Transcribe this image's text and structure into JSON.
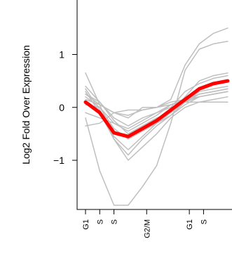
{
  "chart_data": {
    "type": "line",
    "title": "",
    "xlabel": "",
    "ylabel": "Log2 Fold Over Expression",
    "ylim": [
      -1.85,
      1.95
    ],
    "xlim": [
      0,
      10.3
    ],
    "yticks": [
      1,
      0,
      -1
    ],
    "ytick_labels": [
      "1",
      "0",
      "−1"
    ],
    "xticks": [
      {
        "x": 0,
        "label": "G1"
      },
      {
        "x": 1,
        "label": "S"
      },
      {
        "x": 2,
        "label": "S"
      },
      {
        "x": 4.3,
        "label": "G2/M"
      },
      {
        "x": 7.3,
        "label": "G1"
      },
      {
        "x": 8.3,
        "label": "S"
      }
    ],
    "highlight_color": "#ff0000",
    "background_color": "#bfbfbf",
    "x": [
      0,
      1,
      2,
      3,
      4,
      5,
      6,
      7,
      8,
      9,
      10
    ],
    "series": [
      {
        "values": [
          0.1,
          -0.1,
          -0.48,
          -0.55,
          -0.4,
          -0.25,
          -0.05,
          0.15,
          0.35,
          0.45,
          0.5
        ],
        "highlight": true
      },
      {
        "values": [
          0.25,
          0.1,
          -0.25,
          -0.5,
          -0.35,
          -0.2,
          -0.1,
          0.2,
          0.5,
          0.6,
          0.65
        ]
      },
      {
        "values": [
          0.4,
          0.1,
          -0.2,
          -0.35,
          -0.2,
          -0.1,
          0.0,
          0.3,
          0.45,
          0.55,
          0.6
        ]
      },
      {
        "values": [
          0.15,
          0.05,
          -0.1,
          -0.15,
          -0.05,
          0.0,
          0.1,
          0.15,
          0.25,
          0.3,
          0.35
        ]
      },
      {
        "values": [
          -0.1,
          -0.2,
          -0.3,
          -0.4,
          -0.25,
          -0.1,
          0.05,
          0.15,
          0.2,
          0.25,
          0.3
        ]
      },
      {
        "values": [
          0.2,
          0.0,
          -0.4,
          -0.6,
          -0.45,
          -0.3,
          -0.15,
          0.1,
          0.3,
          0.35,
          0.4
        ]
      },
      {
        "values": [
          0.35,
          -0.05,
          -0.55,
          -0.8,
          -0.55,
          -0.3,
          -0.1,
          0.1,
          0.25,
          0.3,
          0.35
        ]
      },
      {
        "values": [
          0.3,
          -0.1,
          -0.6,
          -0.9,
          -0.6,
          -0.35,
          -0.15,
          0.05,
          0.2,
          0.25,
          0.3
        ]
      },
      {
        "values": [
          0.65,
          0.05,
          -0.6,
          -1.0,
          -0.75,
          -0.5,
          -0.2,
          0.0,
          0.1,
          0.15,
          0.2
        ]
      },
      {
        "values": [
          0.05,
          0.0,
          -0.3,
          -0.45,
          -0.3,
          -0.15,
          0.05,
          0.1,
          0.2,
          0.25,
          0.3
        ]
      },
      {
        "values": [
          -0.35,
          -0.3,
          -0.1,
          -0.05,
          -0.05,
          0.0,
          0.05,
          0.1,
          0.1,
          0.1,
          0.1
        ]
      },
      {
        "values": [
          -0.2,
          -1.2,
          -1.85,
          -1.85,
          -1.5,
          -1.1,
          -0.3,
          0.7,
          1.1,
          1.2,
          1.25
        ]
      },
      {
        "values": [
          0.25,
          0.05,
          -0.1,
          -0.2,
          0.0,
          0.0,
          0.15,
          0.8,
          1.2,
          1.4,
          1.5
        ]
      }
    ]
  }
}
